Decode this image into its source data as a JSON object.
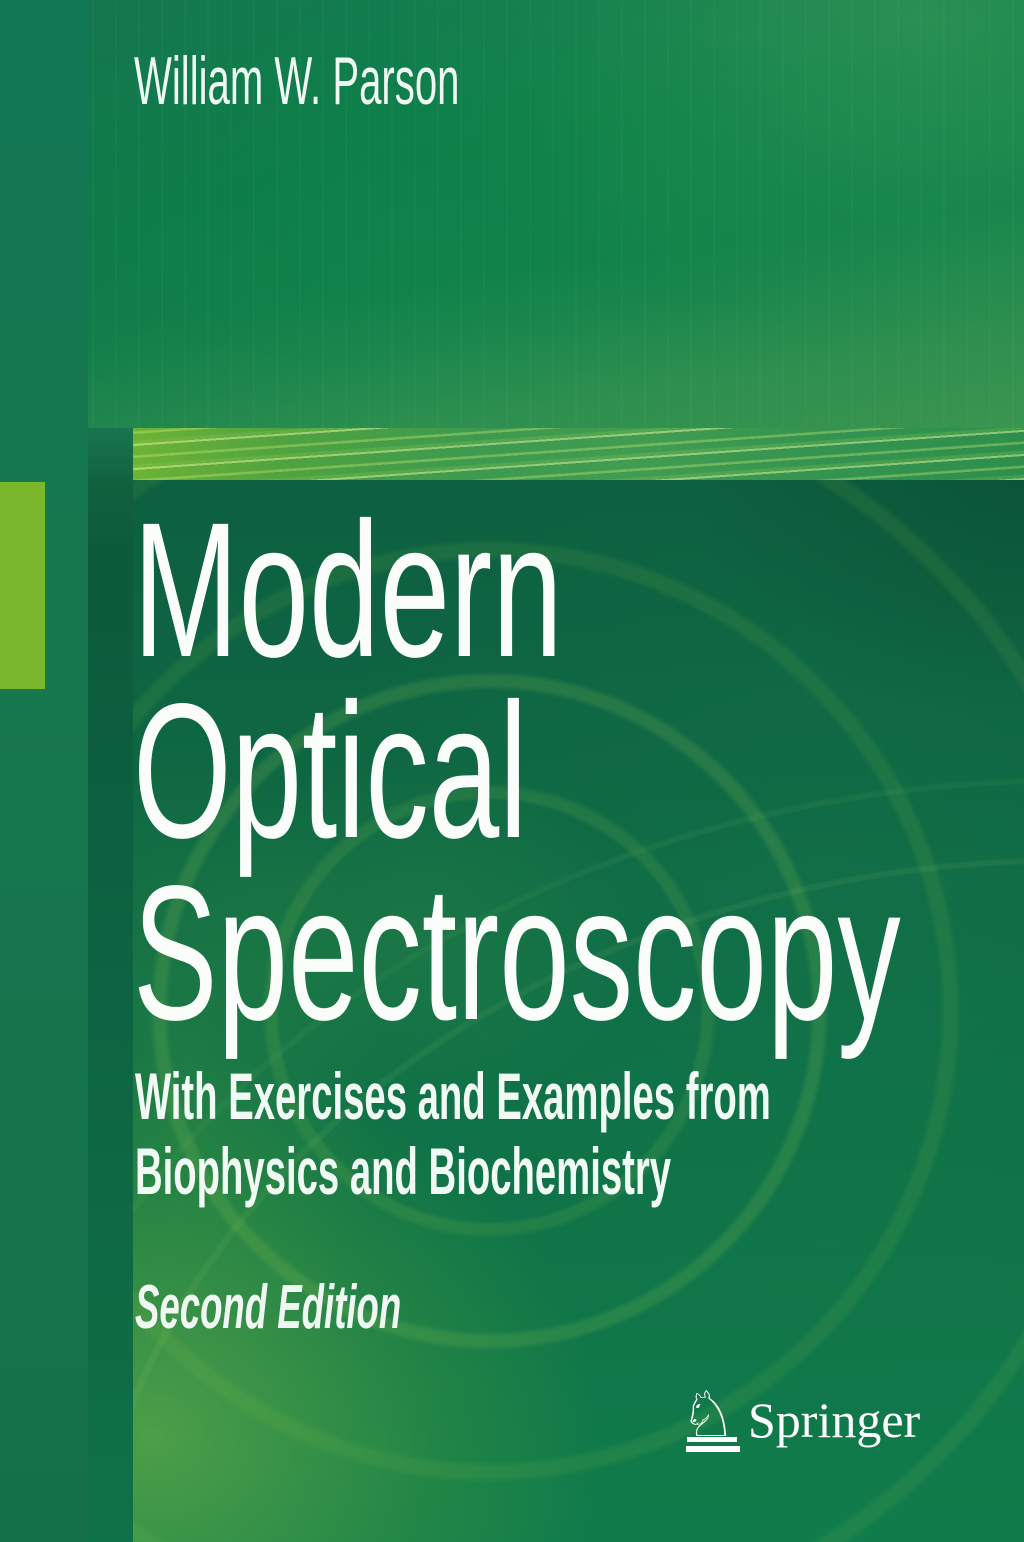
{
  "cover": {
    "author": "William W. Parson",
    "title_lines": [
      "Modern",
      "Optical",
      "Spectroscopy"
    ],
    "subtitle_lines": [
      "With Exercises and Examples from",
      "Biophysics and Biochemistry"
    ],
    "edition": "Second Edition",
    "publisher": {
      "name": "Springer",
      "horse_glyph": "♘"
    },
    "colors": {
      "band_green": "#0e8049",
      "band_light_green": "#2e8f4c",
      "left_column_green": "#157450",
      "dark_strip_green": "#0c5e3e",
      "panel_dark_green": "#0d6040",
      "panel_mid_green": "#117c4b",
      "accent_lime": "#79b82c",
      "text_white": "#f4faf6"
    }
  }
}
